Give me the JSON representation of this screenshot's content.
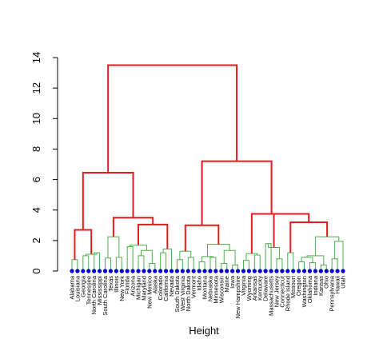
{
  "chart_data": {
    "type": "dendrogram",
    "xlabel": "Height",
    "ylabel": "",
    "ylim": [
      0,
      14
    ],
    "yticks": [
      "0",
      "2",
      "4",
      "6",
      "8",
      "10",
      "12",
      "14"
    ],
    "colors": {
      "upper_links": "#e41a1c",
      "lower_links": "#4daf4a",
      "leaf_points": "#0000cc"
    },
    "leaves": [
      "Alabama",
      "Louisiana",
      "Georgia",
      "Tennessee",
      "North Carolina",
      "Mississippi",
      "South Carolina",
      "Texas",
      "Illinois",
      "New York",
      "Florida",
      "Arizona",
      "Michigan",
      "Maryland",
      "New Mexico",
      "Alaska",
      "Colorado",
      "California",
      "Nevada",
      "South Dakota",
      "West Virginia",
      "North Dakota",
      "Vermont",
      "Idaho",
      "Montana",
      "Nebraska",
      "Minnesota",
      "Wisconsin",
      "Maine",
      "Iowa",
      "New Hampshire",
      "Virginia",
      "Wyoming",
      "Arkansas",
      "Kentucky",
      "Delaware",
      "Massachusetts",
      "New Jersey",
      "Connecticut",
      "Rhode Island",
      "Missouri",
      "Oregon",
      "Washington",
      "Oklahoma",
      "Indiana",
      "Kansas",
      "Ohio",
      "Pennsylvania",
      "Hawaii",
      "Utah"
    ],
    "merges": [
      {
        "left": "Alabama",
        "right": "Louisiana",
        "height": 0.75
      },
      {
        "left": "Georgia",
        "right": "Tennessee",
        "height": 1.0
      },
      {
        "left": "North Carolina",
        "right": "Mississippi",
        "height": 1.2
      },
      {
        "left": "South Carolina",
        "right": "Texas",
        "height": 0.85
      },
      {
        "left": "Illinois",
        "right": "New York",
        "height": 0.9
      },
      {
        "left": "Florida",
        "right": "Arizona",
        "height": 1.6
      },
      {
        "left": "Michigan",
        "right": "Maryland",
        "height": 1.0
      },
      {
        "left": "New Mexico",
        "right": "Alaska",
        "height": 0.5
      },
      {
        "left": "Colorado",
        "right": "California",
        "height": 1.2
      },
      {
        "left": "South Dakota",
        "right": "West Virginia",
        "height": 0.75
      },
      {
        "left": "North Dakota",
        "right": "Vermont",
        "height": 0.9
      },
      {
        "left": "Idaho",
        "right": "Montana",
        "height": 0.6
      },
      {
        "left": "Nebraska",
        "right": "Minnesota",
        "height": 0.9
      },
      {
        "left": "Wisconsin",
        "right": "Maine",
        "height": 0.5
      },
      {
        "left": "Iowa",
        "right": "New Hampshire",
        "height": 0.4
      },
      {
        "left": "Virginia",
        "right": "Wyoming",
        "height": 0.7
      },
      {
        "left": "Arkansas",
        "right": "Kentucky",
        "height": 1.05
      },
      {
        "left": "Delaware",
        "right": "Massachusetts",
        "height": 1.8
      },
      {
        "left": "New Jersey",
        "right": "Connecticut",
        "height": 0.8
      },
      {
        "left": "Rhode Island",
        "right": "Missouri",
        "height": 1.2
      },
      {
        "left": "Oregon",
        "right": "Washington",
        "height": 0.6
      },
      {
        "left": "Oklahoma",
        "right": "Indiana",
        "height": 0.55
      },
      {
        "left": "Kansas",
        "right": "Ohio",
        "height": 0.4
      },
      {
        "left": "Pennsylvania",
        "right": "Hawaii",
        "height": 0.8
      },
      {
        "left": "Georgia-Tennessee",
        "right": "North Carolina-Mississippi",
        "height": 1.1
      },
      {
        "left": "Alabama-Louisiana",
        "right": "Georgia-Mississippi",
        "height": 2.7
      },
      {
        "left": "South Carolina-Texas",
        "right": "Illinois-New York",
        "height": 2.25
      },
      {
        "left": "Michigan-Maryland",
        "right": "New Mexico-Alaska",
        "height": 1.35
      },
      {
        "left": "Florida-Arizona",
        "right": "Michigan-Alaska",
        "height": 1.7
      },
      {
        "left": "Colorado-California",
        "right": "Nevada",
        "height": 1.45
      },
      {
        "left": "Florida-Alaska",
        "right": "Colorado-Nevada",
        "height": 3.05
      },
      {
        "left": "South Carolina-New York",
        "right": "Florida-Nevada",
        "height": 3.5
      },
      {
        "left": "Alabama-Mississippi",
        "right": "South Carolina-Nevada",
        "height": 6.45
      },
      {
        "left": "South Dakota-West Virginia",
        "right": "North Dakota-Vermont",
        "height": 1.3
      },
      {
        "left": "Idaho-Montana",
        "right": "Nebraska-Minnesota",
        "height": 0.95
      },
      {
        "left": "Wisconsin-Maine",
        "right": "Iowa-New Hampshire",
        "height": 1.35
      },
      {
        "left": "Idaho-Minnesota",
        "right": "Wisconsin-New Hampshire",
        "height": 1.75
      },
      {
        "left": "South Dakota-Vermont",
        "right": "Idaho-New Hampshire",
        "height": 3.0
      },
      {
        "left": "Virginia-Wyoming",
        "right": "Arkansas-Kentucky",
        "height": 1.15
      },
      {
        "left": "Delaware-Massachusetts",
        "right": "New Jersey-Connecticut",
        "height": 1.55
      },
      {
        "left": "Oregon-Washington",
        "right": "Oklahoma-Indiana",
        "height": 0.9
      },
      {
        "left": "Oregon-Indiana",
        "right": "Kansas-Ohio",
        "height": 1.0
      },
      {
        "left": "Pennsylvania-Hawaii",
        "right": "Utah",
        "height": 1.95
      },
      {
        "left": "Oregon-Ohio",
        "right": "Pennsylvania-Utah",
        "height": 2.25
      },
      {
        "left": "Rhode Island-Missouri",
        "right": "Oregon-Utah",
        "height": 3.2
      },
      {
        "left": "Delaware-Connecticut",
        "right": "Rhode Island-Utah",
        "height": 3.75
      },
      {
        "left": "Virginia-Kentucky",
        "right": "Delaware-Utah",
        "height": 3.75
      },
      {
        "left": "South Dakota-New Hampshire",
        "right": "Virginia-Utah",
        "height": 7.2
      },
      {
        "left": "Alabama-Nevada",
        "right": "South Dakota-Utah",
        "height": 13.5
      }
    ]
  }
}
